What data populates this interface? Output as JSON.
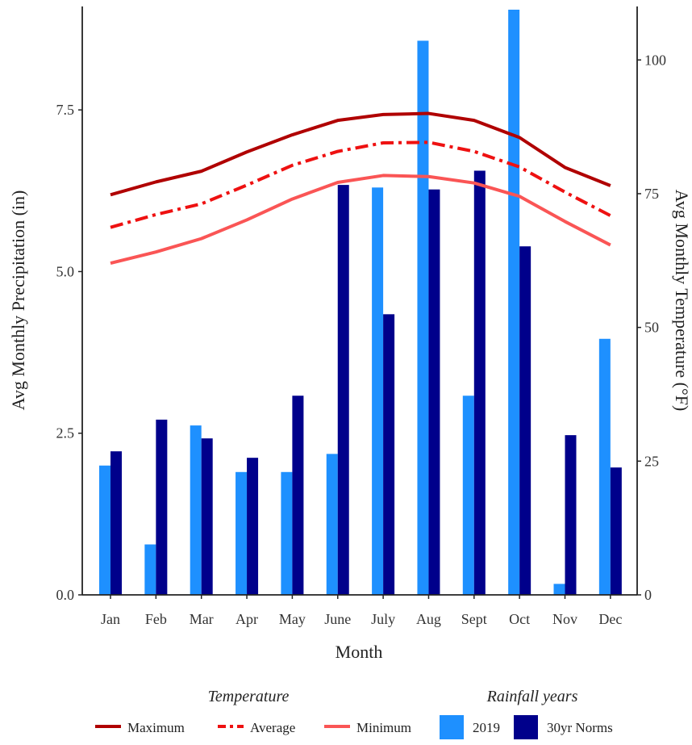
{
  "chart_data": {
    "type": "bar",
    "xlabel": "Month",
    "ylabel_left": "Avg Monthly Precipitation (in)",
    "ylabel_right": "Avg Monthly Temperature (°F)",
    "categories": [
      "Jan",
      "Feb",
      "Mar",
      "Apr",
      "May",
      "June",
      "July",
      "Aug",
      "Sept",
      "Oct",
      "Nov",
      "Dec"
    ],
    "ylim_left": [
      0,
      9.1
    ],
    "yticks_left": [
      "0.0",
      "2.5",
      "5.0",
      "7.5"
    ],
    "ylim_right": [
      0,
      110
    ],
    "yticks_right": [
      "0",
      "25",
      "50",
      "75",
      "100"
    ],
    "bar_series": [
      {
        "name": "2019",
        "color": "#1e90ff",
        "values": [
          2.0,
          0.78,
          2.62,
          1.9,
          1.9,
          2.18,
          6.3,
          8.57,
          3.08,
          9.05,
          0.17,
          3.96
        ]
      },
      {
        "name": "30yr Norms",
        "color": "#00008b",
        "values": [
          2.22,
          2.71,
          2.42,
          2.12,
          3.08,
          6.34,
          4.34,
          6.27,
          6.56,
          5.39,
          2.47,
          1.97
        ]
      }
    ],
    "line_series": [
      {
        "name": "Maximum",
        "color": "#b00000",
        "style": "solid",
        "values": [
          74.8,
          77.2,
          79.2,
          82.8,
          86.0,
          88.7,
          89.8,
          90.0,
          88.7,
          85.5,
          79.9,
          76.5
        ]
      },
      {
        "name": "Average",
        "color": "#ee1111",
        "style": "dashdot",
        "values": [
          68.7,
          71.1,
          73.1,
          76.6,
          80.3,
          82.9,
          84.5,
          84.6,
          82.9,
          80.0,
          75.3,
          70.9
        ]
      },
      {
        "name": "Minimum",
        "color": "#fa5555",
        "style": "solid",
        "values": [
          62.0,
          64.1,
          66.6,
          70.1,
          74.0,
          77.1,
          78.4,
          78.2,
          77.0,
          74.5,
          69.8,
          65.4
        ]
      }
    ],
    "legend_placement": "bottom",
    "grid": false
  },
  "legend": {
    "temperature_title": "Temperature",
    "rainfall_title": "Rainfall years"
  }
}
